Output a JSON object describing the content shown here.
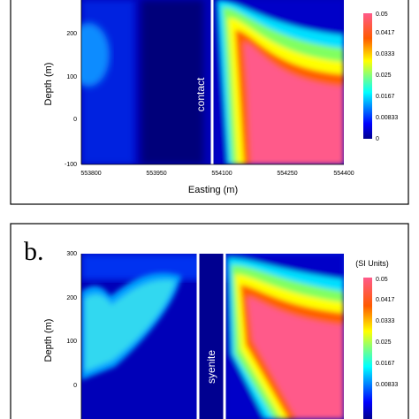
{
  "chart_data": [
    {
      "type": "heatmap",
      "panel_label": "",
      "xlabel": "Easting (m)",
      "ylabel": "Depth (m)",
      "xlim": [
        553750,
        554400
      ],
      "ylim": [
        -100,
        300
      ],
      "x_ticks": [
        "553800",
        "553950",
        "554100",
        "554250",
        "554400"
      ],
      "y_ticks": [
        "-100",
        "0",
        "100",
        "200"
      ],
      "vertical_line_label": "contact",
      "colorbar_title": "",
      "colorbar_ticks": [
        "0.05",
        "0.0417",
        "0.0333",
        "0.025",
        "0.0167",
        "0.00833",
        "0"
      ],
      "colorbar_range": [
        0,
        0.05
      ]
    },
    {
      "type": "heatmap",
      "panel_label": "b.",
      "xlabel": "",
      "ylabel": "Depth (m)",
      "ylim": [
        -100,
        300
      ],
      "y_ticks": [
        "300",
        "200",
        "100",
        "0"
      ],
      "vertical_line_label": "syenite",
      "colorbar_title": "(SI Units)",
      "colorbar_ticks": [
        "0.05",
        "0.0417",
        "0.0333",
        "0.025",
        "0.0167",
        "0.00833"
      ],
      "colorbar_range": [
        0,
        0.05
      ]
    }
  ]
}
